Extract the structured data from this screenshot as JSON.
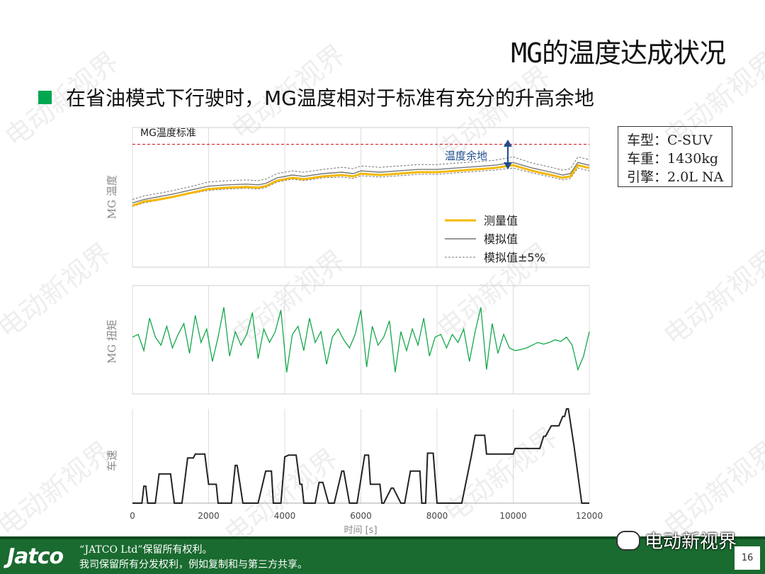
{
  "slide": {
    "title": "MG的温度达成状况",
    "bullet": "在省油模式下行驶时，MG温度相对于标准有充分的升高余地",
    "spec_lines": [
      "车型：C-SUV",
      "车重：1430kg",
      "引擎：2.0L NA"
    ],
    "footer_line1": "“JATCO Ltd”保留所有权利。",
    "footer_line2": "我司保留所有分发权利，例如复制和与第三方共享。",
    "page_number": "16",
    "logo_text": "Jatco",
    "wechat_text": "电动新视界",
    "watermark": "电动新视界"
  },
  "colors": {
    "accent": "#00a650",
    "measured": "#f5b800",
    "simulated": "#777777",
    "band": "#777777",
    "limit": "#d93030",
    "torque": "#14a84a",
    "speed": "#222222",
    "arrow": "#1f4e8c",
    "footer": "#1a6b30"
  },
  "chart_data": [
    {
      "type": "line",
      "ylabel": "MG 温度",
      "limit_label": "MG温度标准",
      "annotation": "温度余地",
      "xlim": [
        0,
        12000
      ],
      "ylim": [
        0,
        100
      ],
      "limit": 88,
      "series": [
        {
          "name": "测量值",
          "x": [
            0,
            300,
            600,
            1000,
            1500,
            2000,
            2500,
            3000,
            3300,
            3500,
            3800,
            4200,
            4500,
            5000,
            5500,
            5800,
            6000,
            6500,
            7000,
            7500,
            8000,
            8500,
            9000,
            9500,
            10000,
            10500,
            11000,
            11300,
            11500,
            11700,
            12000
          ],
          "y": [
            44,
            47,
            48,
            50,
            53,
            56,
            57,
            57.5,
            57,
            58,
            62,
            64,
            63,
            65,
            66,
            65,
            67,
            66,
            67,
            68,
            68,
            69,
            70,
            71,
            73,
            69,
            66,
            64,
            65,
            73,
            71
          ]
        },
        {
          "name": "模拟值",
          "x": [
            0,
            300,
            600,
            1000,
            1500,
            2000,
            2500,
            3000,
            3300,
            3500,
            3800,
            4200,
            4500,
            5000,
            5500,
            5800,
            6000,
            6500,
            7000,
            7500,
            8000,
            8500,
            9000,
            9500,
            10000,
            10500,
            11000,
            11300,
            11500,
            11700,
            12000
          ],
          "y": [
            46,
            48.5,
            50,
            52,
            55,
            58,
            59,
            59.5,
            59,
            60,
            64,
            66,
            65,
            67,
            68,
            67,
            69,
            68,
            69,
            70,
            70,
            71,
            72,
            73,
            75,
            71,
            68,
            66,
            67,
            75,
            73
          ]
        },
        {
          "name": "模拟值±5%",
          "x": [
            0,
            300,
            600,
            1000,
            1500,
            2000,
            2500,
            3000,
            3300,
            3500,
            3800,
            4200,
            4500,
            5000,
            5500,
            5800,
            6000,
            6500,
            7000,
            7500,
            8000,
            8500,
            9000,
            9500,
            10000,
            10500,
            11000,
            11300,
            11500,
            11700,
            12000
          ],
          "y": [
            48.5,
            51,
            52.5,
            54.5,
            57.5,
            61,
            62,
            62.5,
            62,
            63,
            67,
            69,
            68,
            70,
            71.5,
            70.5,
            72.5,
            71.5,
            72.5,
            73.5,
            73.5,
            74.5,
            75.5,
            76.5,
            79,
            74.5,
            71.5,
            69.5,
            70.5,
            79,
            77
          ]
        },
        {
          "name": "模拟值±5% (lower)",
          "x": [
            0,
            300,
            600,
            1000,
            1500,
            2000,
            2500,
            3000,
            3300,
            3500,
            3800,
            4200,
            4500,
            5000,
            5500,
            5800,
            6000,
            6500,
            7000,
            7500,
            8000,
            8500,
            9000,
            9500,
            10000,
            10500,
            11000,
            11300,
            11500,
            11700,
            12000
          ],
          "y": [
            43.5,
            46,
            47.5,
            49.5,
            52.5,
            55,
            56,
            56.5,
            56,
            57,
            61,
            63,
            62,
            64,
            64.5,
            63.5,
            65.5,
            64.5,
            65.5,
            66.5,
            66.5,
            67.5,
            68.5,
            69.5,
            71,
            67.5,
            64.5,
            62.5,
            63.5,
            71,
            69
          ]
        }
      ]
    },
    {
      "type": "line",
      "ylabel": "MG 扭矩",
      "xlim": [
        0,
        12000
      ],
      "ylim": [
        -100,
        100
      ],
      "series": [
        {
          "name": "",
          "x": [
            0,
            150,
            300,
            450,
            600,
            750,
            900,
            1050,
            1200,
            1350,
            1500,
            1650,
            1800,
            1950,
            2100,
            2250,
            2400,
            2550,
            2700,
            2850,
            3000,
            3150,
            3300,
            3450,
            3600,
            3750,
            3900,
            4050,
            4200,
            4350,
            4500,
            4650,
            4800,
            4950,
            5100,
            5250,
            5400,
            5550,
            5700,
            5850,
            6000,
            6150,
            6300,
            6450,
            6600,
            6750,
            6900,
            7050,
            7200,
            7350,
            7500,
            7650,
            7800,
            7950,
            8100,
            8250,
            8400,
            8550,
            8700,
            8850,
            9000,
            9150,
            9300,
            9450,
            9600,
            9750,
            9900,
            10050,
            10200,
            10350,
            10500,
            10650,
            10800,
            10950,
            11100,
            11250,
            11400,
            11550,
            11700,
            11850,
            12000
          ],
          "y": [
            5,
            10,
            -20,
            40,
            5,
            -10,
            25,
            -15,
            10,
            30,
            -25,
            45,
            -5,
            20,
            -40,
            5,
            60,
            -30,
            15,
            -10,
            10,
            50,
            -35,
            20,
            -5,
            15,
            55,
            -60,
            10,
            25,
            -20,
            40,
            -5,
            15,
            -45,
            5,
            20,
            0,
            -15,
            10,
            55,
            -50,
            25,
            -10,
            5,
            35,
            -60,
            15,
            -20,
            20,
            -10,
            40,
            -30,
            5,
            10,
            -15,
            10,
            -5,
            20,
            -40,
            15,
            60,
            -55,
            30,
            -25,
            10,
            -15,
            -20,
            -18,
            -15,
            -10,
            -5,
            -8,
            -5,
            0,
            -3,
            5,
            -10,
            -55,
            -30,
            15
          ]
        }
      ]
    },
    {
      "type": "line",
      "ylabel": "车速",
      "xlabel": "时间 [s]",
      "xlim": [
        0,
        12000
      ],
      "ylim": [
        0,
        100
      ],
      "xticks": [
        0,
        2000,
        4000,
        6000,
        8000,
        10000,
        12000
      ],
      "series": [
        {
          "name": "",
          "x": [
            0,
            250,
            300,
            350,
            400,
            600,
            700,
            800,
            1000,
            1100,
            1300,
            1450,
            1600,
            1650,
            1900,
            2000,
            2050,
            2200,
            2250,
            2300,
            2600,
            2700,
            2750,
            2900,
            3000,
            3100,
            3300,
            3500,
            3650,
            3700,
            3900,
            4000,
            4100,
            4300,
            4400,
            4450,
            4500,
            4800,
            4900,
            5000,
            5150,
            5300,
            5500,
            5550,
            5700,
            5800,
            5900,
            6100,
            6150,
            6200,
            6250,
            6500,
            6550,
            6600,
            6800,
            6850,
            7050,
            7150,
            7300,
            7550,
            7600,
            7650,
            7700,
            7750,
            7900,
            8000,
            8150,
            8250,
            8400,
            8500,
            8650,
            8900,
            9000,
            9200,
            9250,
            9300,
            9400,
            9550,
            9800,
            9900,
            10000,
            10050,
            10450,
            10600,
            10700,
            10800,
            10850,
            11000,
            11200,
            11300,
            11350,
            11400,
            11450,
            11600,
            11800,
            11850,
            12000
          ],
          "y": [
            0,
            0,
            18,
            18,
            0,
            0,
            31,
            31,
            31,
            0,
            0,
            48,
            48,
            52,
            52,
            20,
            20,
            20,
            0,
            0,
            0,
            40,
            40,
            0,
            0,
            0,
            0,
            34,
            34,
            0,
            0,
            49,
            51,
            51,
            20,
            20,
            0,
            0,
            22,
            22,
            0,
            0,
            34,
            34,
            0,
            0,
            0,
            51,
            51,
            51,
            20,
            20,
            0,
            0,
            16,
            16,
            0,
            0,
            34,
            34,
            0,
            0,
            0,
            53,
            53,
            0,
            0,
            0,
            0,
            0,
            0,
            50,
            72,
            72,
            72,
            52,
            52,
            52,
            52,
            52,
            52,
            58,
            58,
            58,
            58,
            71,
            71,
            82,
            82,
            92,
            92,
            100,
            100,
            60,
            0,
            0,
            0
          ]
        }
      ]
    }
  ]
}
